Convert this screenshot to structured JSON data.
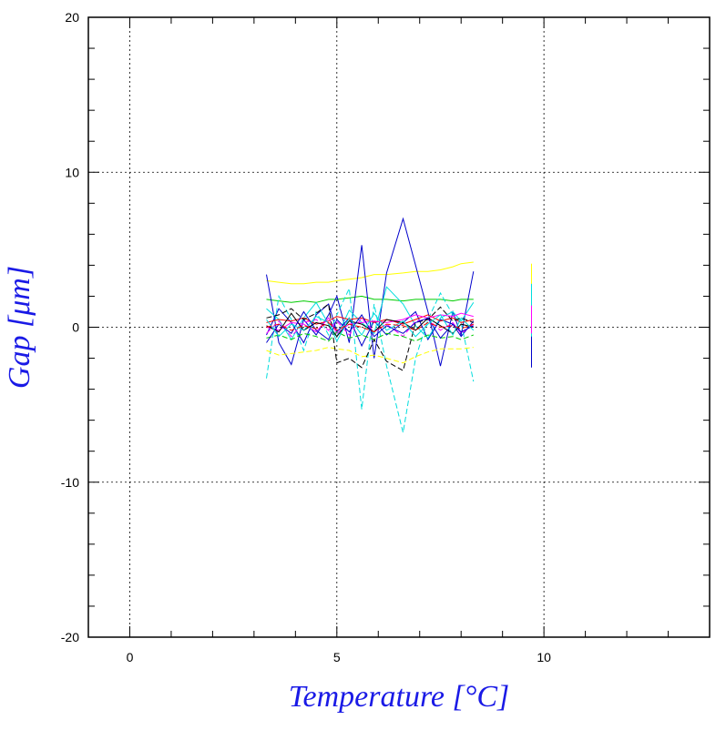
{
  "chart_data": {
    "type": "line",
    "title": "",
    "xlabel": "Temperature [°C]",
    "ylabel": "Gap [μm]",
    "xlim": [
      -1,
      14
    ],
    "ylim": [
      -20,
      20
    ],
    "x_ticks": [
      0,
      5,
      10
    ],
    "y_ticks": [
      -20,
      -10,
      0,
      10,
      20
    ],
    "x_tick_labels": [
      "0",
      "5",
      "10"
    ],
    "y_tick_labels": [
      "-20",
      "-10",
      "0",
      "10",
      "20"
    ],
    "grid": true,
    "grid_style": "dotted",
    "legend": "none",
    "colors": [
      "#0000cc",
      "#00dddd",
      "#00cc00",
      "#ffff00",
      "#ff0000",
      "#ff00ff",
      "#000000"
    ],
    "x_points": [
      3.3,
      3.6,
      3.9,
      4.2,
      4.5,
      4.8,
      5.0,
      5.3,
      5.6,
      5.9,
      6.2,
      6.6,
      6.9,
      7.2,
      7.5,
      7.8,
      8.0,
      8.3
    ],
    "series": [
      {
        "color": "#ffff00",
        "style": "solid",
        "values": [
          3.0,
          2.9,
          2.8,
          2.8,
          2.9,
          2.9,
          3.0,
          3.1,
          3.2,
          3.4,
          3.4,
          3.5,
          3.6,
          3.6,
          3.7,
          3.9,
          4.1,
          4.2
        ]
      },
      {
        "color": "#00cc00",
        "style": "solid",
        "values": [
          1.8,
          1.7,
          1.6,
          1.7,
          1.6,
          1.8,
          1.8,
          1.9,
          2.0,
          1.8,
          1.8,
          1.7,
          1.8,
          1.8,
          1.8,
          1.7,
          1.8,
          1.8
        ]
      },
      {
        "color": "#0000cc",
        "style": "solid",
        "values": [
          3.4,
          -1.0,
          -2.4,
          0.5,
          -0.5,
          0.8,
          2.0,
          -1.0,
          5.3,
          -2.0,
          3.5,
          7.0,
          4.0,
          1.0,
          -2.5,
          1.0,
          -0.5,
          3.6
        ]
      },
      {
        "color": "#0000cc",
        "style": "solid",
        "values": [
          -0.5,
          1.2,
          0.3,
          -1.0,
          0.8,
          1.5,
          -0.3,
          0.6,
          -1.2,
          0.4,
          -0.5,
          0.3,
          1.0,
          -0.8,
          0.5,
          0.2,
          -0.6,
          0.4
        ]
      },
      {
        "color": "#00dddd",
        "style": "dashed",
        "values": [
          -3.3,
          2.0,
          0.5,
          -1.5,
          1.0,
          -0.5,
          0.8,
          2.5,
          -5.3,
          1.5,
          -2.5,
          -6.8,
          -2.0,
          0.5,
          2.2,
          0.8,
          0.3,
          -3.5
        ]
      },
      {
        "color": "#00dddd",
        "style": "solid",
        "values": [
          1.2,
          0.5,
          -0.8,
          0.6,
          1.6,
          0.2,
          -0.6,
          1.1,
          0.3,
          -0.4,
          2.6,
          1.5,
          0.1,
          -0.7,
          0.6,
          1.0,
          0.4,
          1.6
        ]
      },
      {
        "color": "#ffff00",
        "style": "dashed",
        "values": [
          -1.5,
          -1.8,
          -1.7,
          -1.6,
          -1.5,
          -1.3,
          -1.4,
          -1.5,
          -1.9,
          -1.8,
          -2.0,
          -2.3,
          -1.9,
          -1.6,
          -1.4,
          -1.4,
          -1.4,
          -1.3
        ]
      },
      {
        "color": "#ff0000",
        "style": "solid",
        "values": [
          0.3,
          0.5,
          0.4,
          0.6,
          0.2,
          0.4,
          0.7,
          0.5,
          0.6,
          0.3,
          0.5,
          0.2,
          0.5,
          0.8,
          0.4,
          0.6,
          0.3,
          0.5
        ]
      },
      {
        "color": "#ff00ff",
        "style": "solid",
        "values": [
          0.0,
          -0.2,
          0.3,
          0.2,
          -0.3,
          0.6,
          -0.4,
          0.2,
          0.3,
          0.4,
          0.3,
          0.5,
          0.8,
          0.6,
          0.8,
          0.7,
          0.9,
          0.7
        ]
      },
      {
        "color": "#ff00ff",
        "style": "dashed",
        "values": [
          -0.4,
          0.4,
          -0.6,
          0.3,
          0.5,
          -0.2,
          0.4,
          -0.5,
          0.6,
          -0.3,
          0.2,
          -0.6,
          0.4,
          0.5,
          -0.2,
          0.3,
          -0.4,
          0.2
        ]
      },
      {
        "color": "#00cc00",
        "style": "dashed",
        "values": [
          -0.7,
          -0.5,
          -0.8,
          -0.4,
          -0.6,
          -0.9,
          -0.3,
          -0.7,
          -0.5,
          -0.8,
          -0.4,
          -0.6,
          -0.9,
          -0.5,
          -0.7,
          -0.6,
          -0.8,
          -0.5
        ]
      },
      {
        "color": "#000000",
        "style": "dashed",
        "values": [
          0.6,
          0.8,
          1.2,
          0.5,
          0.9,
          1.5,
          -2.3,
          -2.0,
          -2.6,
          -0.8,
          -2.2,
          -2.8,
          0.3,
          0.5,
          1.3,
          0.4,
          0.6,
          0.3
        ]
      },
      {
        "color": "#000000",
        "style": "solid",
        "values": [
          0.1,
          -0.3,
          0.9,
          -0.2,
          0.3,
          0.1,
          -0.6,
          0.4,
          0.2,
          -0.3,
          0.5,
          0.3,
          -0.2,
          0.6,
          0.1,
          -0.4,
          0.2,
          0.0
        ]
      },
      {
        "color": "#0000cc",
        "style": "solid",
        "values": [
          -1.0,
          0.2,
          -0.4,
          1.0,
          -0.2,
          -0.8,
          0.5,
          -0.3,
          0.8,
          -0.6,
          0.1,
          -0.4,
          0.3,
          0.6,
          -0.7,
          0.2,
          -0.3,
          0.1
        ]
      },
      {
        "color": "#00dddd",
        "style": "solid",
        "values": [
          0.5,
          -0.6,
          0.2,
          -0.2,
          0.7,
          0.3,
          -0.9,
          0.6,
          -0.5,
          0.9,
          -0.2,
          0.4,
          -0.6,
          0.2,
          0.8,
          -0.5,
          0.6,
          -0.2
        ]
      },
      {
        "color": "#ff0000",
        "style": "dashed",
        "values": [
          0.0,
          0.2,
          -0.2,
          0.1,
          -0.1,
          0.3,
          -0.2,
          0.2,
          0.0,
          -0.3,
          0.2,
          0.1,
          -0.2,
          0.3,
          0.0,
          0.1,
          -0.1,
          0.2
        ]
      }
    ],
    "isolated": [
      {
        "x": 9.7,
        "y1": -2.6,
        "y2": 1.5,
        "color": "#0000cc"
      },
      {
        "x": 9.7,
        "y1": 1.5,
        "y2": 4.1,
        "color": "#ffff00"
      },
      {
        "x": 9.7,
        "y1": -0.6,
        "y2": 2.8,
        "color": "#00dddd"
      },
      {
        "x": 9.7,
        "y1": -0.4,
        "y2": 1.4,
        "color": "#ff00ff"
      }
    ]
  }
}
